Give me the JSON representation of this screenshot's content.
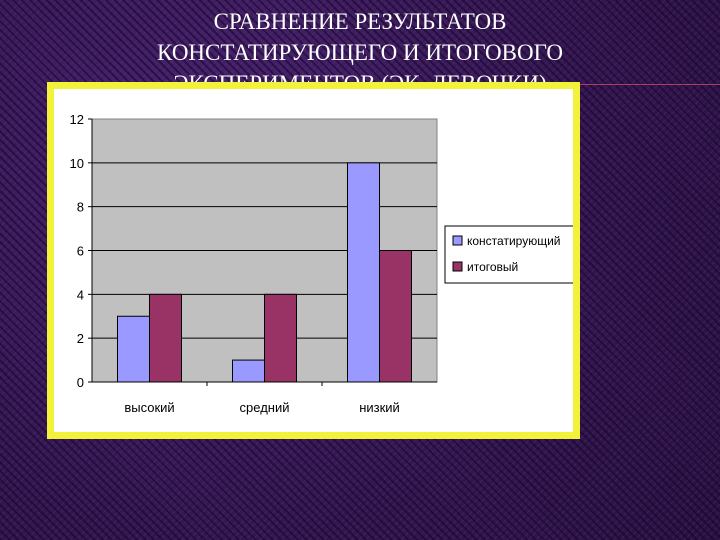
{
  "slide": {
    "title_lines": [
      "СРАВНЕНИЕ РЕЗУЛЬТАТОВ",
      "КОНСТАТИРУЮЩЕГО И ИТОГОВОГО",
      "ЭКСПЕРИМЕНТОВ (ЭК. ДЕВОЧКИ)"
    ]
  },
  "chart_data": {
    "type": "bar",
    "title": "",
    "xlabel": "",
    "ylabel": "",
    "categories": [
      "высокий",
      "средний",
      "низкий"
    ],
    "series": [
      {
        "name": "констатирующий",
        "values": [
          3,
          1,
          10
        ],
        "color": "#9999ff"
      },
      {
        "name": "итоговый",
        "values": [
          4,
          4,
          6
        ],
        "color": "#993366"
      }
    ],
    "ylim": [
      0,
      12
    ],
    "yticks": [
      "0",
      "2",
      "4",
      "6",
      "8",
      "10",
      "12"
    ],
    "grid": true,
    "legend": "right",
    "plot_background": "#c0c0c0"
  },
  "colors": {
    "background": "#3a1a5c",
    "frame_border": "#f2f23a",
    "title_text": "#ffffff"
  }
}
